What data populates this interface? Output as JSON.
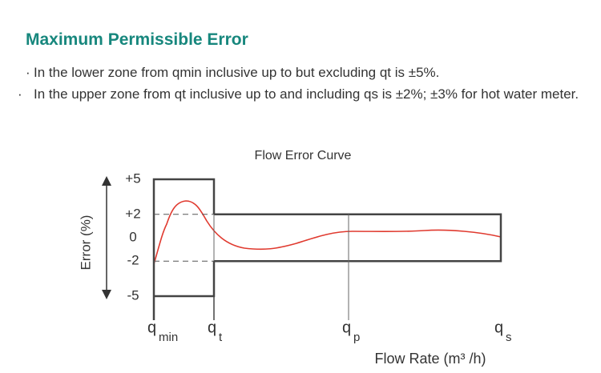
{
  "header": {
    "title": "Maximum Permissible Error"
  },
  "bullets": [
    "In the lower zone from qmin inclusive up to but excluding qt is ±5%.",
    "In the upper zone from qt inclusive up to and including qs is ±2%; ±3% for hot water meter."
  ],
  "chart_data": {
    "type": "line",
    "title": "Flow Error Curve",
    "y_label": "Error (%)",
    "x_label": "Flow Rate (m³ /h)",
    "yticks": [
      {
        "value": 5,
        "label": "+5"
      },
      {
        "value": 2,
        "label": "+2"
      },
      0,
      -2,
      -5
    ],
    "x_labels": [
      {
        "symbol": "q",
        "subscript": "min"
      },
      {
        "symbol": "q",
        "subscript": "t"
      },
      {
        "symbol": "q",
        "subscript": "p"
      },
      {
        "symbol": "q",
        "subscript": "s"
      }
    ],
    "envelope": {
      "lower_zone": 5,
      "upper_zone": 2
    },
    "color": "#e03a2f"
  }
}
